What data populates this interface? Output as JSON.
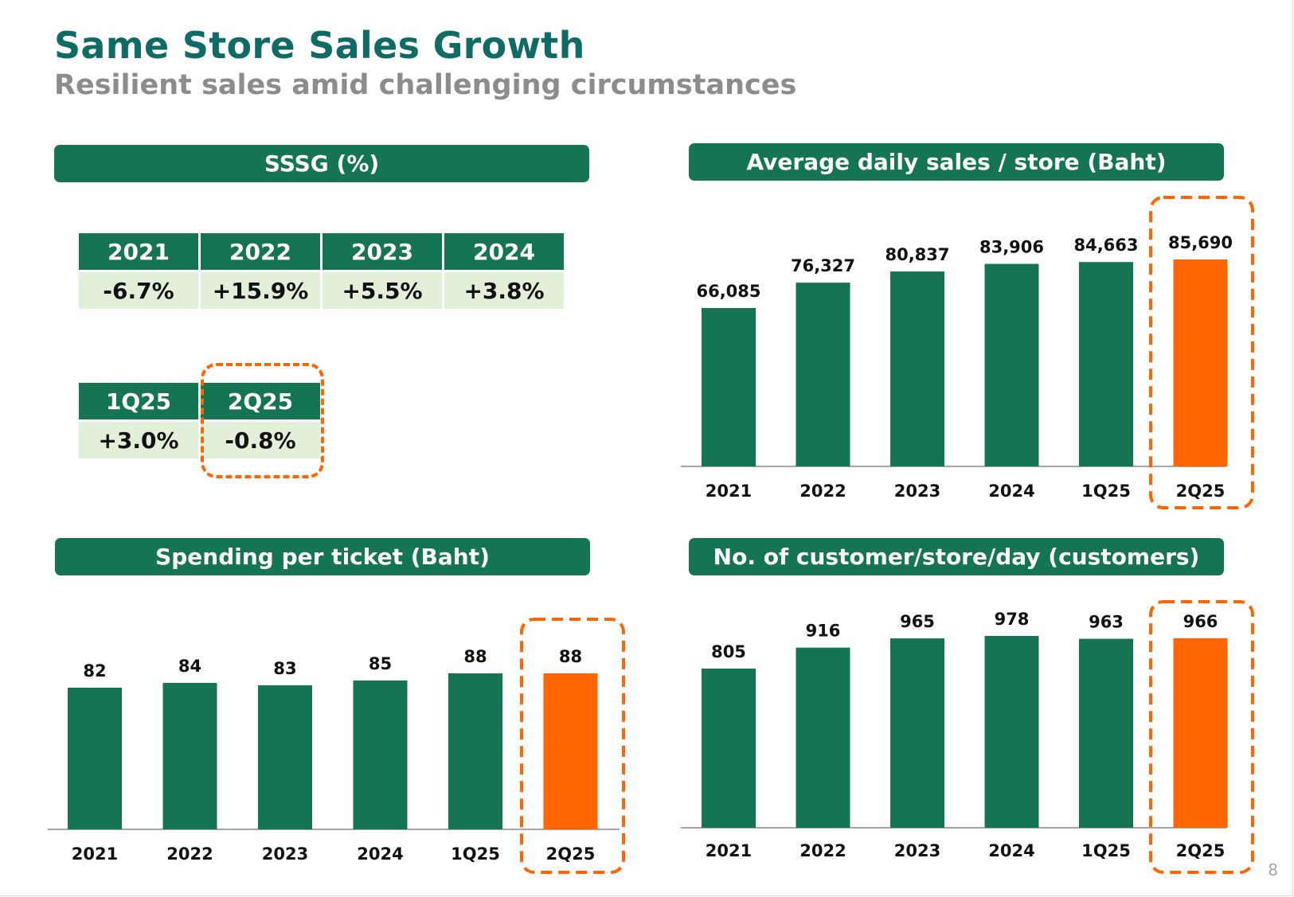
{
  "title": "Same Store Sales Growth",
  "subtitle": "Resilient sales amid challenging circumstances",
  "page_number": "8",
  "colors": {
    "bar": "#157452",
    "highlight": "#ff6600",
    "header": "#157452",
    "table_row": "#e2efd9",
    "title": "#0f6b66"
  },
  "sssg": {
    "header": "SSSG (%)",
    "annual": {
      "columns": [
        "2021",
        "2022",
        "2023",
        "2024"
      ],
      "values": [
        "-6.7%",
        "+15.9%",
        "+5.5%",
        "+3.8%"
      ]
    },
    "quarterly": {
      "columns": [
        "1Q25",
        "2Q25"
      ],
      "values": [
        "+3.0%",
        "-0.8%"
      ]
    }
  },
  "chart_data": [
    {
      "type": "bar",
      "title": "Average daily sales / store (Baht)",
      "categories": [
        "2021",
        "2022",
        "2023",
        "2024",
        "1Q25",
        "2Q25"
      ],
      "values": [
        66085,
        76327,
        80837,
        83906,
        84663,
        85690
      ],
      "labels": [
        "66,085",
        "76,327",
        "80,837",
        "83,906",
        "84,663",
        "85,690"
      ],
      "highlight": "2Q25"
    },
    {
      "type": "bar",
      "title": "Spending per ticket (Baht)",
      "categories": [
        "2021",
        "2022",
        "2023",
        "2024",
        "1Q25",
        "2Q25"
      ],
      "values": [
        82,
        84,
        83,
        85,
        88,
        88
      ],
      "labels": [
        "82",
        "84",
        "83",
        "85",
        "88",
        "88"
      ],
      "highlight": "2Q25"
    },
    {
      "type": "bar",
      "title": "No. of customer/store/day (customers)",
      "categories": [
        "2021",
        "2022",
        "2023",
        "2024",
        "1Q25",
        "2Q25"
      ],
      "values": [
        805,
        916,
        965,
        978,
        963,
        966
      ],
      "labels": [
        "805",
        "916",
        "965",
        "978",
        "963",
        "966"
      ],
      "highlight": "2Q25"
    }
  ]
}
